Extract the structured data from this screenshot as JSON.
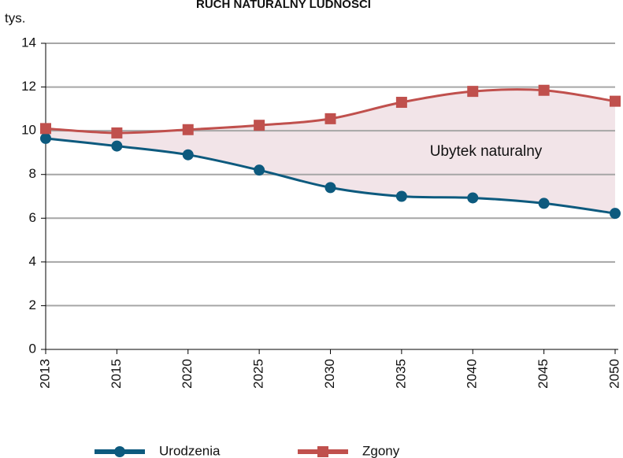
{
  "chart_data": {
    "type": "line",
    "title": "RUCH NATURALNY LUDNOŚCI",
    "y_label": "tys.",
    "annotation": "Ubytek naturalny",
    "categories": [
      "2013",
      "2015",
      "2020",
      "2025",
      "2030",
      "2035",
      "2040",
      "2045",
      "2050"
    ],
    "series": [
      {
        "name": "Urodzenia",
        "color": "#0d5a7e",
        "marker": "circle",
        "values": [
          9.65,
          9.3,
          8.9,
          8.2,
          7.4,
          7.0,
          6.93,
          6.68,
          6.22
        ]
      },
      {
        "name": "Zgony",
        "color": "#c0504d",
        "marker": "square",
        "values": [
          10.1,
          9.9,
          10.05,
          10.25,
          10.55,
          11.3,
          11.8,
          11.85,
          11.35
        ]
      }
    ],
    "fill_between": "#f2e4e8",
    "ylim": [
      0,
      14
    ],
    "yticks": [
      0,
      2,
      4,
      6,
      8,
      10,
      12,
      14
    ],
    "grid": true,
    "legend": "bottom"
  }
}
